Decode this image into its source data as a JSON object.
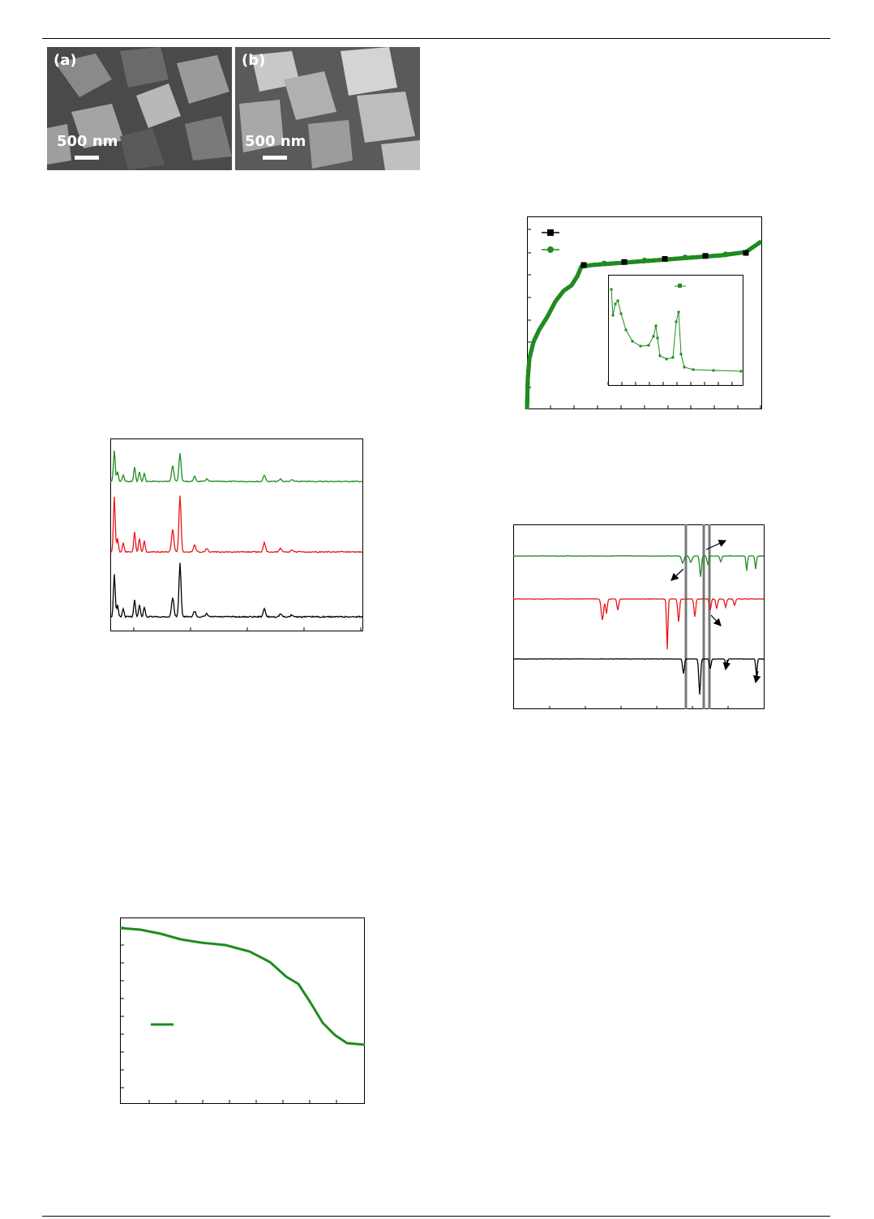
{
  "micrographs": [
    {
      "panel": "(a)",
      "scale_bar": "500 nm"
    },
    {
      "panel": "(b)",
      "scale_bar": "500 nm"
    }
  ],
  "colors": {
    "green": "#1e8c1e",
    "red": "#e8161b",
    "black": "#000000",
    "frame": "#000000",
    "guide": "#7a7a7a"
  },
  "chart_data": [
    {
      "type": "line",
      "title": "",
      "xlabel": "",
      "ylabel": "",
      "grid": false,
      "note": "powder diffraction patterns, three vertically offset series",
      "series": [
        {
          "color": "green"
        },
        {
          "color": "red"
        },
        {
          "color": "black"
        }
      ]
    },
    {
      "type": "line",
      "title": "",
      "xlabel": "",
      "ylabel": "",
      "grid": false,
      "note": "single decreasing curve with legend swatch",
      "series": [
        {
          "color": "green"
        }
      ]
    },
    {
      "type": "scatter",
      "title": "",
      "xlabel": "",
      "ylabel": "",
      "grid": false,
      "legend": "top-left",
      "inset": "bottom-right",
      "series": [
        {
          "color": "black",
          "marker": "square"
        },
        {
          "color": "green",
          "marker": "circle"
        }
      ]
    },
    {
      "type": "line",
      "title": "",
      "xlabel": "",
      "ylabel": "",
      "grid": false,
      "note": "spectra with three vertical guide lines and arrows",
      "series": [
        {
          "color": "green"
        },
        {
          "color": "red"
        },
        {
          "color": "black"
        }
      ]
    }
  ]
}
